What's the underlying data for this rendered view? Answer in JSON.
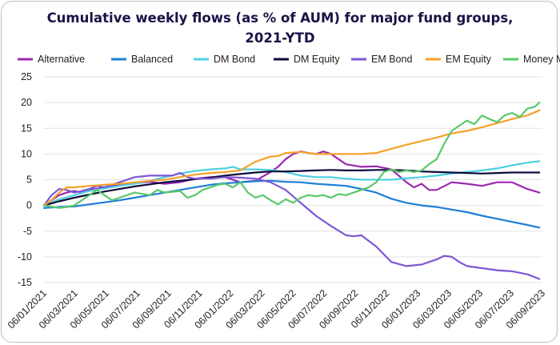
{
  "chart_data": {
    "type": "line",
    "title_line1": "Cumulative weekly flows (as % of AUM) for major fund groups,",
    "title_line2": "2021-YTD",
    "xlabel": "",
    "ylabel": "",
    "ylim": [
      -15,
      25
    ],
    "y_ticks": [
      -15,
      -10,
      -5,
      0,
      5,
      10,
      15,
      20,
      25
    ],
    "x_tick_labels": [
      "06/01/2021",
      "06/03/2021",
      "06/05/2021",
      "06/07/2021",
      "06/09/2021",
      "06/11/2021",
      "06/01/2022",
      "06/03/2022",
      "06/05/2022",
      "06/07/2022",
      "06/09/2022",
      "06/11/2022",
      "06/01/2023",
      "06/03/2023",
      "06/05/2023",
      "06/07/2023",
      "06/09/2023"
    ],
    "x_range_months": [
      0,
      33
    ],
    "grid": "horizontal",
    "legend_position": "top",
    "series": [
      {
        "name": "Alternative",
        "color": "#9c27b0",
        "x": [
          0,
          0.5,
          1,
          1.5,
          2,
          2.5,
          3,
          4,
          5,
          6,
          7,
          8,
          9,
          10,
          11,
          12,
          13,
          14,
          15,
          15.5,
          16,
          16.5,
          17,
          17.5,
          18,
          18.5,
          19,
          19.5,
          20,
          21,
          22,
          23,
          24,
          24.5,
          25,
          25.5,
          26,
          27,
          28,
          29,
          30,
          31,
          32,
          32.8
        ],
        "y": [
          0,
          1,
          2,
          2.5,
          2.8,
          2.5,
          3,
          3.5,
          4,
          4.3,
          4.6,
          4.2,
          4.5,
          5.2,
          5.5,
          5.5,
          4.5,
          4.8,
          6.5,
          7.5,
          9,
          10,
          10.5,
          10.2,
          10,
          10.5,
          10,
          9,
          8,
          7.5,
          7.6,
          7,
          4.5,
          3.5,
          4.2,
          3,
          3,
          4.5,
          4.2,
          3.8,
          4.5,
          4.5,
          3.2,
          2.5
        ]
      },
      {
        "name": "Balanced",
        "color": "#1e7fd6",
        "x": [
          0,
          1,
          2,
          3,
          4,
          5,
          6,
          7,
          8,
          9,
          10,
          11,
          12,
          13,
          14,
          15,
          16,
          17,
          18,
          19,
          20,
          21,
          22,
          23,
          24,
          25,
          26,
          27,
          28,
          29,
          30,
          31,
          32,
          32.8
        ],
        "y": [
          -0.5,
          -0.3,
          -0.2,
          0.2,
          0.6,
          1,
          1.5,
          2,
          2.5,
          3,
          3.5,
          4,
          4.3,
          4.5,
          4.7,
          4.8,
          4.6,
          4.5,
          4.2,
          4,
          3.8,
          3.2,
          2.5,
          1.3,
          0.5,
          0,
          -0.3,
          -0.8,
          -1.3,
          -2,
          -2.6,
          -3.2,
          -3.8,
          -4.3
        ]
      },
      {
        "name": "DM Bond",
        "color": "#4dd0e1",
        "x": [
          0,
          1,
          2,
          3,
          4,
          5,
          6,
          7,
          8,
          9,
          10,
          11,
          12,
          12.5,
          13,
          14,
          15,
          16,
          17,
          18,
          19,
          20,
          21,
          22,
          23,
          24,
          25,
          26,
          27,
          28,
          29,
          30,
          31,
          32,
          32.8
        ],
        "y": [
          0,
          1.2,
          2,
          2.8,
          3.3,
          3.8,
          4.2,
          4.8,
          5.5,
          6.2,
          6.7,
          7,
          7.2,
          7.5,
          7,
          7,
          6.9,
          6.5,
          5.8,
          5.5,
          5.5,
          5.2,
          5,
          5,
          5,
          5.3,
          5.5,
          5.8,
          6.2,
          6.5,
          6.8,
          7.2,
          7.8,
          8.3,
          8.6
        ]
      },
      {
        "name": "DM Equity",
        "color": "#0d0b3a",
        "x": [
          0,
          1,
          2,
          3,
          4,
          5,
          6,
          7,
          8,
          9,
          10,
          11,
          12,
          13,
          14,
          15,
          16,
          17,
          18,
          19,
          20,
          21,
          22,
          23,
          24,
          25,
          26,
          27,
          28,
          29,
          30,
          31,
          32,
          32.8
        ],
        "y": [
          0,
          0.8,
          1.5,
          2.1,
          2.7,
          3.2,
          3.7,
          4.1,
          4.5,
          4.8,
          5.1,
          5.4,
          5.8,
          6.1,
          6.4,
          6.6,
          6.6,
          6.7,
          6.8,
          6.9,
          6.8,
          6.8,
          6.9,
          6.9,
          6.8,
          6.6,
          6.5,
          6.4,
          6.3,
          6.2,
          6.3,
          6.4,
          6.4,
          6.4
        ]
      },
      {
        "name": "EM Bond",
        "color": "#7e57d6",
        "x": [
          0,
          0.5,
          1,
          1.5,
          2,
          2.5,
          3,
          3.5,
          4,
          5,
          6,
          7,
          8,
          8.5,
          9,
          9.5,
          10,
          11,
          12,
          13,
          14,
          15,
          16,
          17,
          18,
          19,
          20,
          20.5,
          21,
          22,
          23,
          24,
          25,
          26,
          26.5,
          27,
          27.5,
          28,
          29,
          30,
          31,
          32,
          32.8
        ],
        "y": [
          0,
          2,
          3.2,
          3,
          2.5,
          2.8,
          3.2,
          3.8,
          3.5,
          4.5,
          5.5,
          5.8,
          5.8,
          5.8,
          6.3,
          5.5,
          5.2,
          5.2,
          5.5,
          5.4,
          5.2,
          4.5,
          3,
          0.5,
          -2,
          -4,
          -5.8,
          -6,
          -5.8,
          -8,
          -11,
          -11.8,
          -11.5,
          -10.5,
          -9.8,
          -10,
          -11,
          -11.8,
          -12.2,
          -12.6,
          -12.8,
          -13.4,
          -14.3
        ]
      },
      {
        "name": "EM Equity",
        "color": "#f5a22b",
        "x": [
          0,
          0.5,
          1,
          1.5,
          2,
          3,
          4,
          5,
          6,
          7,
          8,
          9,
          10,
          11,
          12,
          13,
          14,
          15,
          15.5,
          16,
          17,
          18,
          19,
          20,
          21,
          22,
          23,
          24,
          25,
          26,
          27,
          28,
          29,
          30,
          31,
          32,
          32.8
        ],
        "y": [
          0,
          1,
          2.5,
          3.5,
          3.5,
          3.8,
          4,
          4.2,
          4.5,
          4.8,
          5,
          5.5,
          6,
          6.3,
          6.5,
          6.8,
          8.5,
          9.5,
          9.6,
          10.2,
          10.4,
          10,
          10,
          10,
          10,
          10.2,
          11,
          11.8,
          12.5,
          13.2,
          14,
          14.5,
          15.2,
          16,
          16.8,
          17.5,
          18.5
        ]
      },
      {
        "name": "Money Market",
        "color": "#5ac86a",
        "x": [
          0,
          1,
          1.5,
          2,
          2.5,
          3,
          3.5,
          4,
          4.5,
          5,
          6,
          7,
          7.5,
          8,
          9,
          9.5,
          10,
          10.5,
          11,
          11.5,
          12,
          12.5,
          13,
          13.5,
          14,
          14.5,
          15,
          15.5,
          16,
          16.5,
          17,
          17.5,
          18,
          18.5,
          19,
          19.5,
          20,
          20.5,
          21,
          21.5,
          22,
          22.5,
          23,
          23.5,
          24,
          24.5,
          25,
          25.5,
          26,
          26.5,
          27,
          27.5,
          28,
          28.5,
          29,
          29.5,
          30,
          30.5,
          31,
          31.5,
          32,
          32.5,
          32.8
        ],
        "y": [
          0,
          -0.5,
          -0.3,
          0,
          1,
          2,
          3,
          2,
          1,
          1.5,
          2.5,
          2,
          3,
          2.5,
          2.8,
          1.5,
          2,
          3,
          3.5,
          4,
          4.2,
          3.5,
          4.5,
          2.5,
          1.5,
          2,
          1,
          0.2,
          1.2,
          0.5,
          1.5,
          2,
          1.8,
          2,
          1.5,
          2.2,
          2,
          2.5,
          3,
          3.5,
          4.5,
          6.5,
          7,
          6.5,
          6.8,
          6.5,
          6.8,
          8,
          9,
          12,
          14.5,
          15.5,
          16.5,
          15.8,
          17.5,
          16.8,
          16.2,
          17.5,
          18,
          17.2,
          18.8,
          19.2,
          20
        ]
      }
    ]
  }
}
